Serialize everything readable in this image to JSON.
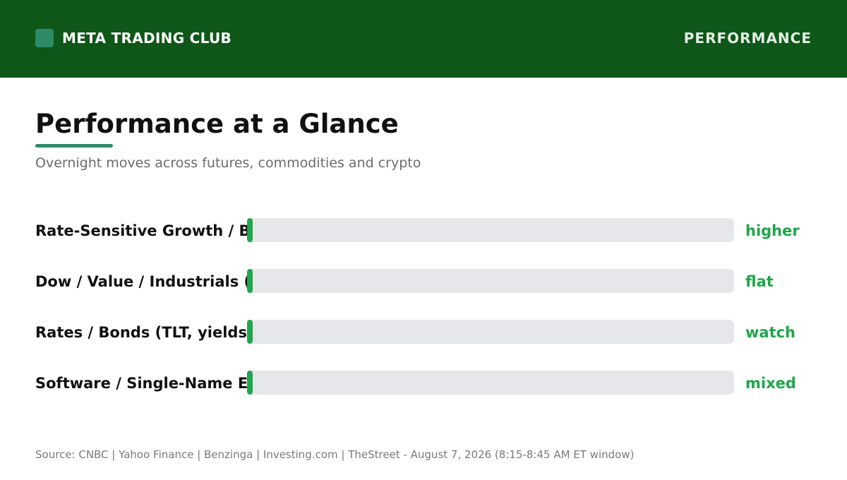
{
  "header": {
    "brand_name": "META TRADING CLUB",
    "section": "PERFORMANCE",
    "logo_icon": "square-logo-icon"
  },
  "page": {
    "title": "Performance at a Glance",
    "subtitle": "Overnight moves across futures, commodities and crypto",
    "source": "Source: CNBC | Yahoo Finance | Benzinga | Investing.com | TheStreet - August 7, 2026 (8:15-8:45 AM ET window)"
  },
  "colors": {
    "header_bg": "#0e5718",
    "accent": "#2e8b67",
    "bar_track": "#e5e7eb",
    "bar_fill": "#1fa64a",
    "status_text": "#1fa64a"
  },
  "chart_data": {
    "type": "bar",
    "orientation": "horizontal",
    "categories": [
      "Rate-Sensitive Growth / Bi",
      "Dow / Value / Industrials (D",
      "Rates / Bonds (TLT, yields)",
      "Software / Single-Name Ec"
    ],
    "series": [
      {
        "values": [
          0,
          0,
          0,
          0
        ]
      }
    ],
    "status_labels": [
      "higher",
      "flat",
      "watch",
      "mixed"
    ],
    "xlim": [
      0,
      100
    ],
    "grid": false,
    "legend": "none"
  }
}
